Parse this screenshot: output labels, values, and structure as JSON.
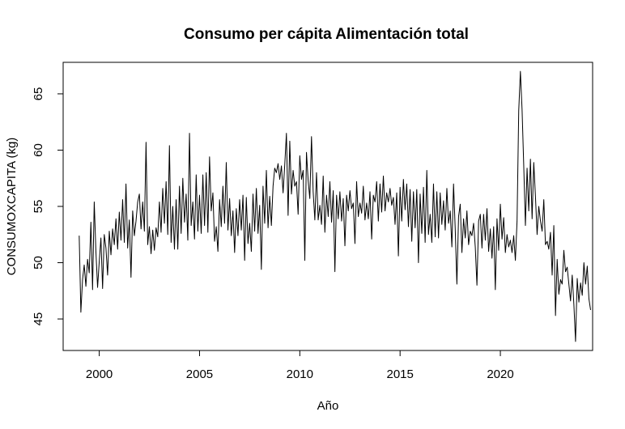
{
  "chart_data": {
    "type": "line",
    "title": "Consumo per cápita Alimentación total",
    "xlabel": "Año",
    "ylabel": "CONSUMOXCAPITA (kg)",
    "xlim": [
      1998.2,
      2024.6
    ],
    "ylim": [
      42.2,
      67.8
    ],
    "x_ticks": [
      2000,
      2005,
      2010,
      2015,
      2020
    ],
    "y_ticks": [
      45,
      50,
      55,
      60,
      65
    ],
    "x_start": 1999.0,
    "x_step": 0.08333,
    "line_color": "#000000",
    "series": [
      {
        "values": [
          52.4,
          45.6,
          48.5,
          49.8,
          47.9,
          50.3,
          49.1,
          53.6,
          47.6,
          55.4,
          51.0,
          47.8,
          50.1,
          52.2,
          47.7,
          52.5,
          51.3,
          48.9,
          52.8,
          50.7,
          53.0,
          51.6,
          53.9,
          51.2,
          54.5,
          52.0,
          55.6,
          51.8,
          57.0,
          51.3,
          53.8,
          48.7,
          54.6,
          52.4,
          53.7,
          55.4,
          56.1,
          53.0,
          55.4,
          52.8,
          60.7,
          51.6,
          53.2,
          50.8,
          52.9,
          51.1,
          53.1,
          52.3,
          55.4,
          52.7,
          56.6,
          53.5,
          57.2,
          52.5,
          60.4,
          51.8,
          55.0,
          51.2,
          55.6,
          51.2,
          56.8,
          52.6,
          57.5,
          53.6,
          56.1,
          52.0,
          61.5,
          53.3,
          55.4,
          52.1,
          57.8,
          52.8,
          56.0,
          52.6,
          57.8,
          53.3,
          58.0,
          52.7,
          59.4,
          54.6,
          56.2,
          51.9,
          53.2,
          51.0,
          55.6,
          53.2,
          56.8,
          53.5,
          58.9,
          52.9,
          55.7,
          52.4,
          54.6,
          50.9,
          54.8,
          52.4,
          55.6,
          52.9,
          56.0,
          50.2,
          55.8,
          51.7,
          53.5,
          51.0,
          56.1,
          52.8,
          56.6,
          52.6,
          55.1,
          49.4,
          56.8,
          53.5,
          58.2,
          53.1,
          55.9,
          53.3,
          56.8,
          58.4,
          58.0,
          58.8,
          57.4,
          58.6,
          56.2,
          58.7,
          61.5,
          54.2,
          60.8,
          56.1,
          58.2,
          56.8,
          57.2,
          54.3,
          59.5,
          57.4,
          58.2,
          50.2,
          59.8,
          57.3,
          55.7,
          61.2,
          56.3,
          53.8,
          58.0,
          53.8,
          55.1,
          53.4,
          57.7,
          52.7,
          56.0,
          54.1,
          57.2,
          53.6,
          56.4,
          49.2,
          56.0,
          53.9,
          56.3,
          53.7,
          55.7,
          51.5,
          56.0,
          54.6,
          56.4,
          54.8,
          55.3,
          51.7,
          57.2,
          54.1,
          55.3,
          54.4,
          56.8,
          53.8,
          55.3,
          53.9,
          56.3,
          52.1,
          56.0,
          55.4,
          57.2,
          53.7,
          57.0,
          54.5,
          57.7,
          54.6,
          56.2,
          55.4,
          56.6,
          55.1,
          55.8,
          53.4,
          56.2,
          50.6,
          56.7,
          53.7,
          57.4,
          54.7,
          57.0,
          53.2,
          56.5,
          51.9,
          56.3,
          53.1,
          56.5,
          50.0,
          56.1,
          52.6,
          56.7,
          51.8,
          58.2,
          52.5,
          54.3,
          51.8,
          57.0,
          52.3,
          56.3,
          52.2,
          56.2,
          53.4,
          55.5,
          52.9,
          56.6,
          53.5,
          54.6,
          51.4,
          57.0,
          53.0,
          48.1,
          54.1,
          55.2,
          50.9,
          53.9,
          52.2,
          54.6,
          51.6,
          52.8,
          52.4,
          53.5,
          51.4,
          48.0,
          53.7,
          54.3,
          51.3,
          54.3,
          52.0,
          54.8,
          51.0,
          53.0,
          50.4,
          53.2,
          47.6,
          53.9,
          51.1,
          55.2,
          52.1,
          54.0,
          50.9,
          52.5,
          51.4,
          52.0,
          50.9,
          52.4,
          50.2,
          53.7,
          63.5,
          67.0,
          63.6,
          58.6,
          53.3,
          58.4,
          54.6,
          59.2,
          53.9,
          58.9,
          55.9,
          52.5,
          55.0,
          53.7,
          52.8,
          55.6,
          51.6,
          51.9,
          51.2,
          52.7,
          48.9,
          53.3,
          45.3,
          50.3,
          47.2,
          48.5,
          48.1,
          51.1,
          49.2,
          49.6,
          48.1,
          46.6,
          48.9,
          46.3,
          43.0,
          48.6,
          46.5,
          48.2,
          47.1,
          50.0,
          48.1,
          49.7,
          46.8,
          45.8
        ]
      }
    ]
  }
}
